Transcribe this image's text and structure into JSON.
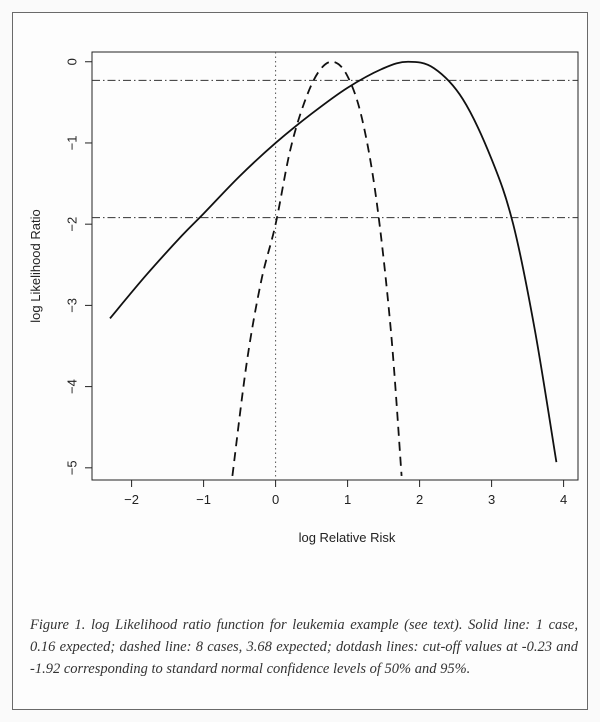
{
  "chart_data": {
    "type": "line",
    "xlabel": "log Relative Risk",
    "ylabel": "log Likelihood Ratio",
    "xlim": [
      -2.55,
      4.2
    ],
    "ylim": [
      -5.15,
      0.12
    ],
    "xticks": [
      -2,
      -1,
      0,
      1,
      2,
      3,
      4
    ],
    "yticks": [
      0,
      -1,
      -2,
      -3,
      -4,
      -5
    ],
    "xtick_labels": [
      "−2",
      "−1",
      "0",
      "1",
      "2",
      "3",
      "4"
    ],
    "ytick_labels": [
      "0",
      "−1",
      "−2",
      "−3",
      "−4",
      "−5"
    ],
    "series": [
      {
        "style": "solid",
        "x": [
          -2.3,
          -1.8,
          -1.3,
          -1.0,
          -0.5,
          0.0,
          0.5,
          1.0,
          1.5,
          1.84,
          2.2,
          2.6,
          3.0,
          3.3,
          3.6,
          3.9
        ],
        "y": [
          -3.16,
          -2.63,
          -2.14,
          -1.87,
          -1.41,
          -1.0,
          -0.64,
          -0.32,
          -0.08,
          0.0,
          -0.08,
          -0.46,
          -1.2,
          -2.0,
          -3.3,
          -4.93
        ]
      },
      {
        "style": "dashed",
        "x": [
          -0.6,
          -0.4,
          -0.2,
          0.0,
          0.2,
          0.4,
          0.6,
          0.8,
          1.0,
          1.2,
          1.4,
          1.6,
          1.75
        ],
        "y": [
          -5.1,
          -3.7,
          -2.7,
          -2.0,
          -1.1,
          -0.5,
          -0.12,
          0.0,
          -0.18,
          -0.7,
          -1.7,
          -3.3,
          -5.1
        ]
      }
    ],
    "hlines": [
      {
        "y": -0.23,
        "style": "dotdash"
      },
      {
        "y": -1.92,
        "style": "dotdash"
      }
    ],
    "vlines": [
      {
        "x": 0,
        "style": "dotted"
      }
    ]
  },
  "caption": "Figure 1. log Likelihood ratio function for leukemia example (see text). Solid line: 1 case, 0.16 expected; dashed line: 8 cases, 3.68 expected; dotdash lines: cut-off values  at -0.23 and -1.92 corresponding to standard normal confidence levels of 50% and 95%."
}
